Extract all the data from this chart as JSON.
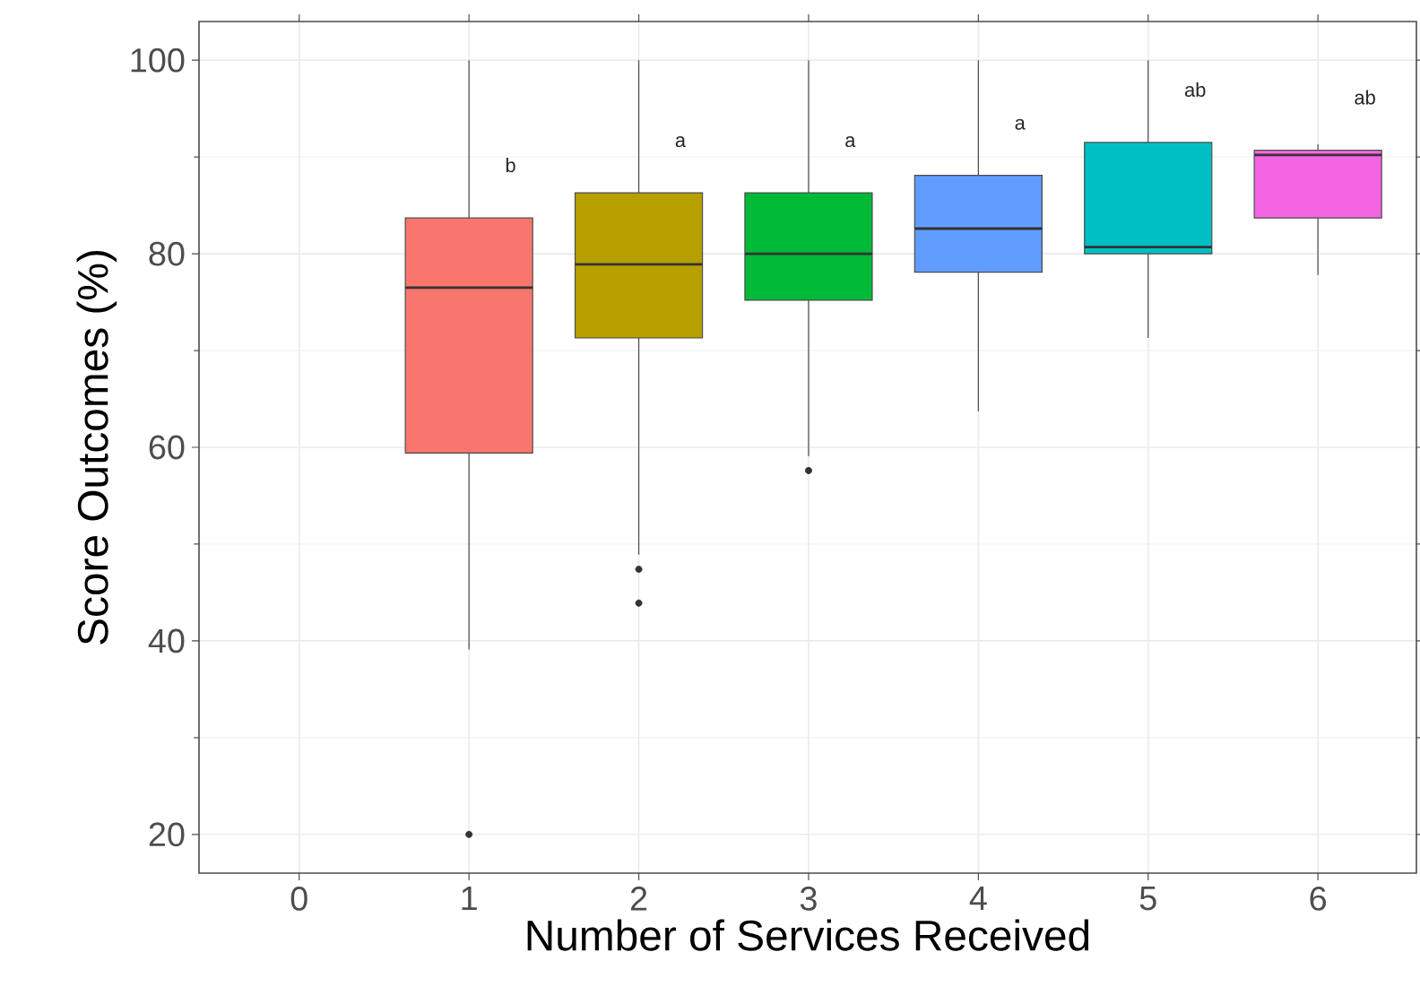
{
  "chart_data": {
    "type": "box",
    "xlabel": "Number of Services Received",
    "ylabel": "Score Outcomes (%)",
    "categories": [
      "0",
      "1",
      "2",
      "3",
      "4",
      "5",
      "6"
    ],
    "boxes": [
      null,
      {
        "low": 39.1,
        "q1": 59.4,
        "median": 76.5,
        "q3": 83.7,
        "high": 100,
        "outliers": [
          20
        ]
      },
      {
        "low": 48.9,
        "q1": 71.3,
        "median": 78.9,
        "q3": 86.3,
        "high": 100,
        "outliers": [
          47.4,
          43.9
        ]
      },
      {
        "low": 59.1,
        "q1": 75.2,
        "median": 80,
        "q3": 86.3,
        "high": 100,
        "outliers": [
          57.6
        ]
      },
      {
        "low": 63.7,
        "q1": 78.1,
        "median": 82.6,
        "q3": 88.1,
        "high": 100
      },
      {
        "low": 71.3,
        "q1": 80,
        "median": 80.7,
        "q3": 91.5,
        "high": 100
      },
      {
        "low": 77.8,
        "q1": 83.7,
        "median": 90.2,
        "q3": 90.7,
        "high": 91.3
      }
    ],
    "colors": [
      null,
      "#f8766d",
      "#b79f00",
      "#00ba38",
      "#619cff",
      "#00bfc4",
      "#f564e3"
    ],
    "annotations": [
      "b",
      "a",
      "a",
      "a",
      "ab",
      "ab"
    ],
    "ylim": [
      16,
      104
    ],
    "yticks": [
      20,
      40,
      60,
      80,
      100
    ],
    "grid": true
  }
}
